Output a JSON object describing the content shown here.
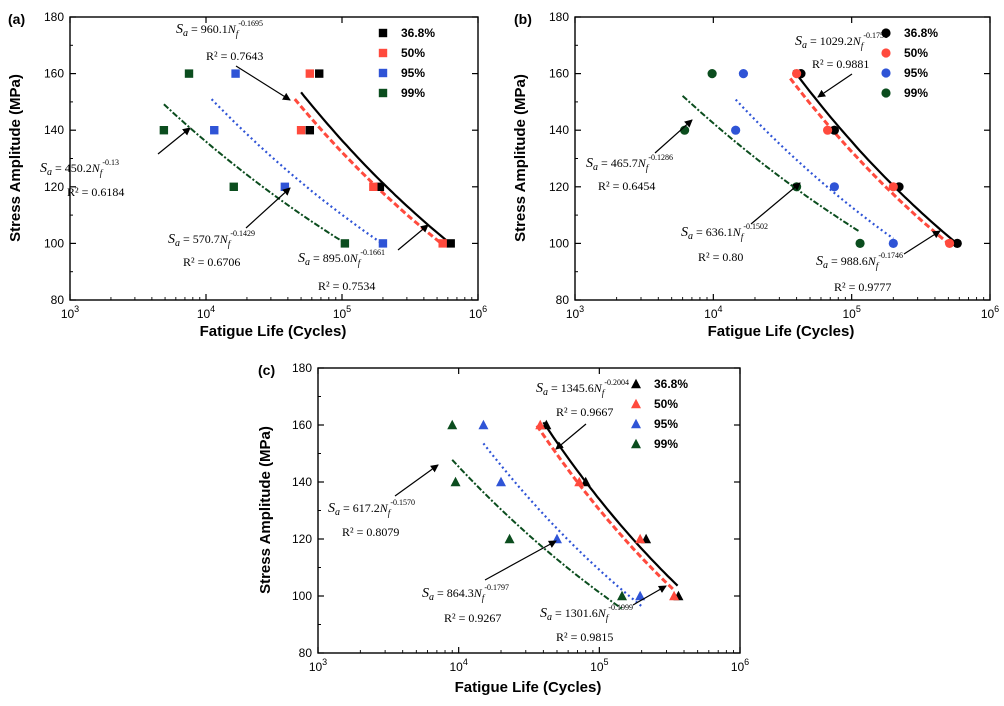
{
  "colors": {
    "36.8%": "#000000",
    "50%": "#ff4a3d",
    "95%": "#2f54d6",
    "99%": "#0b4d1e"
  },
  "chart_data": [
    {
      "id": "a",
      "panel_label": "(a)",
      "type": "scatter",
      "marker": "square",
      "xlabel": "Fatigue Life (Cycles)",
      "ylabel": "Stress Amplitude (MPa)",
      "x_scale": "log",
      "xlim": [
        1000,
        1000000
      ],
      "ylim": [
        80,
        180
      ],
      "x_ticks": [
        "10^3",
        "10^4",
        "10^5",
        "10^6"
      ],
      "y_ticks": [
        80,
        100,
        120,
        140,
        160,
        180
      ],
      "legend": [
        "36.8%",
        "50%",
        "95%",
        "99%"
      ],
      "legend_position": "top-right",
      "series": [
        {
          "name": "36.8%",
          "points": [
            [
              68000,
              160
            ],
            [
              58000,
              140
            ],
            [
              190000,
              120
            ],
            [
              630000,
              100
            ]
          ],
          "fit": {
            "a": 960.1,
            "b": -0.1695,
            "x_range": [
              50000,
              650000
            ]
          }
        },
        {
          "name": "50%",
          "points": [
            [
              58000,
              160
            ],
            [
              50000,
              140
            ],
            [
              170000,
              120
            ],
            [
              550000,
              100
            ]
          ],
          "fit": {
            "a": 895.0,
            "b": -0.1661,
            "x_range": [
              45000,
              560000
            ]
          }
        },
        {
          "name": "95%",
          "points": [
            [
              16500,
              160
            ],
            [
              11500,
              140
            ],
            [
              38000,
              120
            ],
            [
              200000,
              100
            ]
          ],
          "fit": {
            "a": 570.7,
            "b": -0.1429,
            "x_range": [
              11000,
              200000
            ]
          }
        },
        {
          "name": "99%",
          "points": [
            [
              7500,
              160
            ],
            [
              4900,
              140
            ],
            [
              16000,
              120
            ],
            [
              105000,
              100
            ]
          ],
          "fit": {
            "a": 450.2,
            "b": -0.13,
            "x_range": [
              4900,
              105000
            ]
          }
        }
      ],
      "annotations": [
        {
          "coef": "960.1",
          "exp": "-0.1695",
          "r2": "R² = 0.7643"
        },
        {
          "coef": "450.2",
          "exp": "-0.13",
          "r2": "R² = 0.6184"
        },
        {
          "coef": "570.7",
          "exp": "-0.1429",
          "r2": "R² = 0.6706"
        },
        {
          "coef": "895.0",
          "exp": "-0.1661",
          "r2": "R² = 0.7534"
        }
      ]
    },
    {
      "id": "b",
      "panel_label": "(b)",
      "type": "scatter",
      "marker": "circle",
      "xlabel": "Fatigue Life (Cycles)",
      "ylabel": "Stress Amplitude (MPa)",
      "x_scale": "log",
      "xlim": [
        1000,
        1000000
      ],
      "ylim": [
        80,
        180
      ],
      "x_ticks": [
        "10^3",
        "10^4",
        "10^5",
        "10^6"
      ],
      "y_ticks": [
        80,
        100,
        120,
        140,
        160,
        180
      ],
      "legend": [
        "36.8%",
        "50%",
        "95%",
        "99%"
      ],
      "legend_position": "top-right",
      "series": [
        {
          "name": "36.8%",
          "points": [
            [
              43000,
              160
            ],
            [
              75000,
              140
            ],
            [
              220000,
              120
            ],
            [
              580000,
              100
            ]
          ],
          "fit": {
            "a": 1029.2,
            "b": -0.1758,
            "x_range": [
              38000,
              600000
            ]
          }
        },
        {
          "name": "50%",
          "points": [
            [
              40000,
              160
            ],
            [
              67000,
              140
            ],
            [
              200000,
              120
            ],
            [
              510000,
              100
            ]
          ],
          "fit": {
            "a": 988.6,
            "b": -0.1746,
            "x_range": [
              36000,
              520000
            ]
          }
        },
        {
          "name": "95%",
          "points": [
            [
              16500,
              160
            ],
            [
              14500,
              140
            ],
            [
              75000,
              120
            ],
            [
              200000,
              100
            ]
          ],
          "fit": {
            "a": 636.1,
            "b": -0.1502,
            "x_range": [
              14500,
              200000
            ]
          }
        },
        {
          "name": "99%",
          "points": [
            [
              9800,
              160
            ],
            [
              6200,
              140
            ],
            [
              40000,
              120
            ],
            [
              115000,
              100
            ]
          ],
          "fit": {
            "a": 465.7,
            "b": -0.1286,
            "x_range": [
              6000,
              115000
            ]
          }
        }
      ],
      "annotations": [
        {
          "coef": "1029.2",
          "exp": "-0.1758",
          "r2": "R² = 0.9881"
        },
        {
          "coef": "465.7",
          "exp": "-0.1286",
          "r2": "R² = 0.6454"
        },
        {
          "coef": "636.1",
          "exp": "-0.1502",
          "r2": "R² = 0.80"
        },
        {
          "coef": "988.6",
          "exp": "-0.1746",
          "r2": "R² = 0.9777"
        }
      ]
    },
    {
      "id": "c",
      "panel_label": "(c)",
      "type": "scatter",
      "marker": "triangle",
      "xlabel": "Fatigue Life (Cycles)",
      "ylabel": "Stress Amplitude (MPa)",
      "x_scale": "log",
      "xlim": [
        1000,
        1000000
      ],
      "ylim": [
        80,
        180
      ],
      "x_ticks": [
        "10^3",
        "10^4",
        "10^5",
        "10^6"
      ],
      "y_ticks": [
        80,
        100,
        120,
        140,
        160,
        180
      ],
      "legend": [
        "36.8%",
        "50%",
        "95%",
        "99%"
      ],
      "legend_position": "top-right",
      "series": [
        {
          "name": "36.8%",
          "points": [
            [
              42000,
              160
            ],
            [
              80000,
              140
            ],
            [
              215000,
              120
            ],
            [
              365000,
              100
            ]
          ],
          "fit": {
            "a": 1345.6,
            "b": -0.2004,
            "x_range": [
              40000,
              360000
            ]
          }
        },
        {
          "name": "50%",
          "points": [
            [
              38000,
              160
            ],
            [
              72000,
              140
            ],
            [
              195000,
              120
            ],
            [
              340000,
              100
            ]
          ],
          "fit": {
            "a": 1301.6,
            "b": -0.1999,
            "x_range": [
              36000,
              340000
            ]
          }
        },
        {
          "name": "95%",
          "points": [
            [
              15000,
              160
            ],
            [
              20000,
              140
            ],
            [
              50000,
              120
            ],
            [
              195000,
              100
            ]
          ],
          "fit": {
            "a": 864.3,
            "b": -0.1797,
            "x_range": [
              15000,
              200000
            ]
          }
        },
        {
          "name": "99%",
          "points": [
            [
              9000,
              160
            ],
            [
              9500,
              140
            ],
            [
              23000,
              120
            ],
            [
              145000,
              100
            ]
          ],
          "fit": {
            "a": 617.2,
            "b": -0.157,
            "x_range": [
              9000,
              145000
            ]
          }
        }
      ],
      "annotations": [
        {
          "coef": "1345.6",
          "exp": "-0.2004",
          "r2": "R² = 0.9667"
        },
        {
          "coef": "617.2",
          "exp": "-0.1570",
          "r2": "R² = 0.8079"
        },
        {
          "coef": "864.3",
          "exp": "-0.1797",
          "r2": "R² = 0.9267"
        },
        {
          "coef": "1301.6",
          "exp": "-0.1999",
          "r2": "R² = 0.9815"
        }
      ]
    }
  ]
}
